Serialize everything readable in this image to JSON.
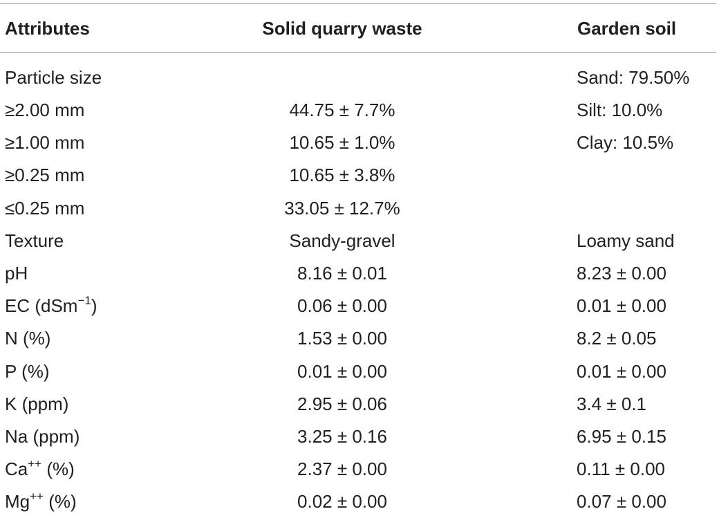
{
  "table": {
    "headers": {
      "attr": "Attributes",
      "quarry": "Solid quarry waste",
      "garden": "Garden soil"
    },
    "rows": [
      {
        "attr": "Particle size",
        "sup": "",
        "attr_suffix": "",
        "quarry": "",
        "garden": "Sand: 79.50%"
      },
      {
        "attr": "≥2.00 mm",
        "sup": "",
        "attr_suffix": "",
        "quarry": "44.75 ± 7.7%",
        "garden": "Silt: 10.0%"
      },
      {
        "attr": "≥1.00 mm",
        "sup": "",
        "attr_suffix": "",
        "quarry": "10.65 ± 1.0%",
        "garden": "Clay: 10.5%"
      },
      {
        "attr": "≥0.25 mm",
        "sup": "",
        "attr_suffix": "",
        "quarry": "10.65 ± 3.8%",
        "garden": ""
      },
      {
        "attr": "≤0.25 mm",
        "sup": "",
        "attr_suffix": "",
        "quarry": "33.05 ± 12.7%",
        "garden": ""
      },
      {
        "attr": "Texture",
        "sup": "",
        "attr_suffix": "",
        "quarry": "Sandy-gravel",
        "garden": "Loamy sand"
      },
      {
        "attr": "pH",
        "sup": "",
        "attr_suffix": "",
        "quarry": "8.16 ± 0.01",
        "garden": "8.23 ± 0.00"
      },
      {
        "attr": "EC (dSm",
        "sup": "−1",
        "attr_suffix": ")",
        "quarry": "0.06 ± 0.00",
        "garden": "0.01 ± 0.00"
      },
      {
        "attr": "N (%)",
        "sup": "",
        "attr_suffix": "",
        "quarry": "1.53 ± 0.00",
        "garden": "8.2 ± 0.05"
      },
      {
        "attr": "P (%)",
        "sup": "",
        "attr_suffix": "",
        "quarry": "0.01 ± 0.00",
        "garden": "0.01 ± 0.00"
      },
      {
        "attr": "K (ppm)",
        "sup": "",
        "attr_suffix": "",
        "quarry": "2.95 ± 0.06",
        "garden": "3.4 ± 0.1"
      },
      {
        "attr": "Na (ppm)",
        "sup": "",
        "attr_suffix": "",
        "quarry": "3.25 ± 0.16",
        "garden": "6.95 ± 0.15"
      },
      {
        "attr": "Ca",
        "sup": "++",
        "attr_suffix": " (%)",
        "quarry": "2.37 ± 0.00",
        "garden": "0.11 ± 0.00"
      },
      {
        "attr": "Mg",
        "sup": "++",
        "attr_suffix": " (%)",
        "quarry": "0.02 ± 0.00",
        "garden": "0.07 ± 0.00"
      }
    ]
  }
}
